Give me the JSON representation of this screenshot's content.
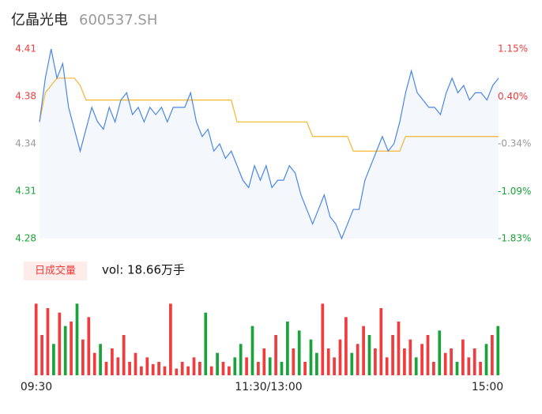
{
  "header": {
    "name": "亿晶光电",
    "code": "600537.SH"
  },
  "chart_data": [
    {
      "type": "line",
      "xlabels": [
        "09:30",
        "11:30/13:00",
        "15:00"
      ],
      "series": [
        {
          "name": "price",
          "color": "#4a86e8",
          "values": [
            4.36,
            4.39,
            4.41,
            4.39,
            4.4,
            4.37,
            4.355,
            4.34,
            4.355,
            4.37,
            4.36,
            4.355,
            4.37,
            4.36,
            4.375,
            4.38,
            4.365,
            4.37,
            4.36,
            4.37,
            4.365,
            4.37,
            4.36,
            4.37,
            4.37,
            4.37,
            4.38,
            4.36,
            4.35,
            4.355,
            4.34,
            4.345,
            4.335,
            4.34,
            4.33,
            4.32,
            4.315,
            4.33,
            4.32,
            4.33,
            4.315,
            4.32,
            4.32,
            4.33,
            4.325,
            4.31,
            4.3,
            4.29,
            4.3,
            4.31,
            4.295,
            4.29,
            4.28,
            4.29,
            4.3,
            4.3,
            4.32,
            4.33,
            4.34,
            4.35,
            4.34,
            4.345,
            4.36,
            4.38,
            4.395,
            4.38,
            4.375,
            4.37,
            4.37,
            4.365,
            4.38,
            4.39,
            4.38,
            4.385,
            4.375,
            4.38,
            4.38,
            4.375,
            4.385,
            4.39
          ]
        },
        {
          "name": "average",
          "color": "#f5b731",
          "values": [
            4.36,
            4.38,
            4.385,
            4.39,
            4.39,
            4.39,
            4.39,
            4.385,
            4.375,
            4.375,
            4.375,
            4.375,
            4.375,
            4.375,
            4.375,
            4.375,
            4.375,
            4.375,
            4.375,
            4.375,
            4.375,
            4.375,
            4.375,
            4.375,
            4.375,
            4.375,
            4.375,
            4.375,
            4.375,
            4.375,
            4.375,
            4.375,
            4.375,
            4.375,
            4.36,
            4.36,
            4.36,
            4.36,
            4.36,
            4.36,
            4.36,
            4.36,
            4.36,
            4.36,
            4.36,
            4.36,
            4.36,
            4.35,
            4.35,
            4.35,
            4.35,
            4.35,
            4.35,
            4.35,
            4.34,
            4.34,
            4.34,
            4.34,
            4.34,
            4.34,
            4.34,
            4.34,
            4.34,
            4.35,
            4.35,
            4.35,
            4.35,
            4.35,
            4.35,
            4.35,
            4.35,
            4.35,
            4.35,
            4.35,
            4.35,
            4.35,
            4.35,
            4.35,
            4.35,
            4.35
          ]
        }
      ],
      "ylim": [
        4.28,
        4.41
      ],
      "yticks": [
        {
          "value": 4.41,
          "label": "4.41"
        },
        {
          "value": 4.3775,
          "label": "4.38"
        },
        {
          "value": 4.345,
          "label": "4.34"
        },
        {
          "value": 4.3125,
          "label": "4.31"
        },
        {
          "value": 4.28,
          "label": "4.28"
        }
      ],
      "y2lim": [
        -1.83,
        1.15
      ],
      "y2ticks": [
        {
          "value": 1.15,
          "label": "1.15%"
        },
        {
          "value": 0.4,
          "label": "0.40%"
        },
        {
          "value": -0.34,
          "label": "-0.34%"
        },
        {
          "value": -1.09,
          "label": "-1.09%"
        },
        {
          "value": -1.83,
          "label": "-1.83%"
        }
      ],
      "tick_colors": [
        "#f03c3c",
        "#f03c3c",
        "#999999",
        "#1aa33a",
        "#1aa33a"
      ],
      "area_color": "#f4f7fc"
    },
    {
      "type": "bar",
      "badge": "日成交量",
      "volume_label": "vol: 18.66万手",
      "values": [
        1600,
        900,
        1500,
        700,
        1400,
        1100,
        1200,
        1600,
        800,
        1300,
        500,
        700,
        300,
        600,
        400,
        900,
        300,
        500,
        200,
        400,
        250,
        300,
        200,
        1600,
        150,
        300,
        200,
        400,
        300,
        1400,
        200,
        500,
        300,
        200,
        400,
        700,
        400,
        1100,
        300,
        600,
        400,
        900,
        300,
        1200,
        600,
        1000,
        300,
        800,
        500,
        1600,
        600,
        400,
        800,
        1300,
        500,
        700,
        1100,
        900,
        600,
        1500,
        400,
        900,
        1200,
        600,
        800,
        400,
        700,
        900,
        300,
        1000,
        500,
        600,
        300,
        800,
        400,
        600,
        300,
        700,
        900,
        1100
      ],
      "colors": [
        "#f03c3c",
        "#f03c3c",
        "#f03c3c",
        "#1aa33a",
        "#f03c3c",
        "#1aa33a",
        "#f03c3c",
        "#1aa33a",
        "#f03c3c",
        "#f03c3c",
        "#f03c3c",
        "#1aa33a",
        "#f03c3c",
        "#f03c3c",
        "#f03c3c",
        "#f03c3c",
        "#f03c3c",
        "#f03c3c",
        "#f03c3c",
        "#f03c3c",
        "#f03c3c",
        "#f03c3c",
        "#f03c3c",
        "#f03c3c",
        "#f03c3c",
        "#f03c3c",
        "#f03c3c",
        "#f03c3c",
        "#f03c3c",
        "#1aa33a",
        "#f03c3c",
        "#1aa33a",
        "#f03c3c",
        "#f03c3c",
        "#1aa33a",
        "#1aa33a",
        "#f03c3c",
        "#1aa33a",
        "#f03c3c",
        "#f03c3c",
        "#1aa33a",
        "#f03c3c",
        "#1aa33a",
        "#1aa33a",
        "#f03c3c",
        "#1aa33a",
        "#f03c3c",
        "#1aa33a",
        "#1aa33a",
        "#f03c3c",
        "#f03c3c",
        "#f03c3c",
        "#f03c3c",
        "#f03c3c",
        "#1aa33a",
        "#f03c3c",
        "#f03c3c",
        "#1aa33a",
        "#f03c3c",
        "#f03c3c",
        "#f03c3c",
        "#f03c3c",
        "#f03c3c",
        "#f03c3c",
        "#f03c3c",
        "#1aa33a",
        "#f03c3c",
        "#f03c3c",
        "#f03c3c",
        "#1aa33a",
        "#f03c3c",
        "#f03c3c",
        "#1aa33a",
        "#f03c3c",
        "#f03c3c",
        "#f03c3c",
        "#f03c3c",
        "#1aa33a",
        "#f03c3c",
        "#1aa33a"
      ],
      "ylim": [
        0,
        1800
      ]
    }
  ]
}
